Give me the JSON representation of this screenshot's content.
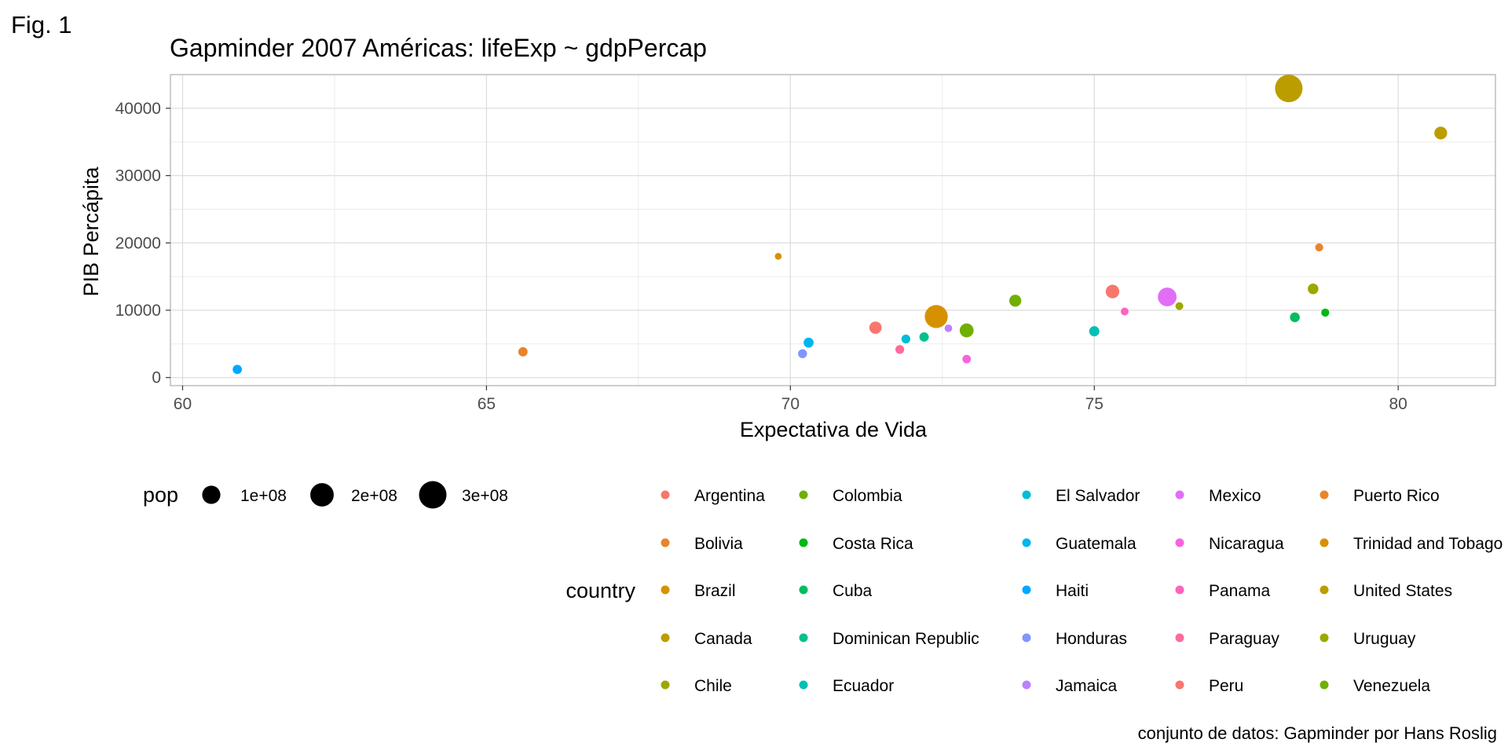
{
  "fig_label": "Fig. 1",
  "caption": "conjunto de datos: Gapminder por Hans Roslig",
  "chart_data": {
    "type": "scatter",
    "title": "Gapminder 2007 Américas: lifeExp ~  gdpPercap",
    "xlabel": "Expectativa de Vida",
    "ylabel": "PIB Percápita",
    "xlim": [
      59.8,
      81.6
    ],
    "ylim": [
      -1200,
      45000
    ],
    "x_ticks": [
      60,
      65,
      70,
      75,
      80
    ],
    "y_ticks": [
      0,
      10000,
      20000,
      30000,
      40000
    ],
    "grid": true,
    "size_legend": {
      "title": "pop",
      "entries": [
        {
          "label": "1e+08",
          "value": 100000000
        },
        {
          "label": "2e+08",
          "value": 200000000
        },
        {
          "label": "3e+08",
          "value": 300000000
        }
      ]
    },
    "color_legend_title": "country",
    "points": [
      {
        "country": "Argentina",
        "x": 75.3,
        "y": 12780,
        "pop": 40301927,
        "color": "#F8766D"
      },
      {
        "country": "Bolivia",
        "x": 65.6,
        "y": 3822,
        "pop": 9119152,
        "color": "#E9842C"
      },
      {
        "country": "Brazil",
        "x": 72.4,
        "y": 9066,
        "pop": 190010647,
        "color": "#D69100"
      },
      {
        "country": "Canada",
        "x": 80.7,
        "y": 36319,
        "pop": 33390141,
        "color": "#BC9D00"
      },
      {
        "country": "Chile",
        "x": 78.6,
        "y": 13172,
        "pop": 16284741,
        "color": "#9CA700"
      },
      {
        "country": "Colombia",
        "x": 72.9,
        "y": 7007,
        "pop": 44227550,
        "color": "#6FB000"
      },
      {
        "country": "Costa Rica",
        "x": 78.8,
        "y": 9645,
        "pop": 4133884,
        "color": "#00B813"
      },
      {
        "country": "Cuba",
        "x": 78.3,
        "y": 8948,
        "pop": 11416987,
        "color": "#00BD61"
      },
      {
        "country": "Dominican Republic",
        "x": 72.2,
        "y": 6025,
        "pop": 9319622,
        "color": "#00C08E"
      },
      {
        "country": "Ecuador",
        "x": 75.0,
        "y": 6873,
        "pop": 13755680,
        "color": "#00C0B4"
      },
      {
        "country": "El Salvador",
        "x": 71.9,
        "y": 5728,
        "pop": 6939688,
        "color": "#00BDD4"
      },
      {
        "country": "Guatemala",
        "x": 70.3,
        "y": 5186,
        "pop": 12572928,
        "color": "#00B5EE"
      },
      {
        "country": "Haiti",
        "x": 60.9,
        "y": 1202,
        "pop": 8502814,
        "color": "#00A7FF"
      },
      {
        "country": "Honduras",
        "x": 70.2,
        "y": 3548,
        "pop": 7483763,
        "color": "#7F96FF"
      },
      {
        "country": "Jamaica",
        "x": 72.6,
        "y": 7321,
        "pop": 2780132,
        "color": "#BC81FF"
      },
      {
        "country": "Mexico",
        "x": 76.2,
        "y": 11978,
        "pop": 108700891,
        "color": "#E26EF7"
      },
      {
        "country": "Nicaragua",
        "x": 72.9,
        "y": 2749,
        "pop": 5675356,
        "color": "#F863DF"
      },
      {
        "country": "Panama",
        "x": 75.5,
        "y": 9809,
        "pop": 3242173,
        "color": "#FF62BF"
      },
      {
        "country": "Paraguay",
        "x": 71.8,
        "y": 4173,
        "pop": 6667147,
        "color": "#FF6A9A"
      },
      {
        "country": "Peru",
        "x": 71.4,
        "y": 7409,
        "pop": 28674757,
        "color": "#F8766D"
      },
      {
        "country": "Puerto Rico",
        "x": 78.7,
        "y": 19329,
        "pop": 3942491,
        "color": "#E9842C"
      },
      {
        "country": "Trinidad and Tobago",
        "x": 69.8,
        "y": 18009,
        "pop": 1056608,
        "color": "#D69100"
      },
      {
        "country": "United States",
        "x": 78.2,
        "y": 42952,
        "pop": 301139947,
        "color": "#BC9D00"
      },
      {
        "country": "Uruguay",
        "x": 76.4,
        "y": 10611,
        "pop": 3447496,
        "color": "#9CA700"
      },
      {
        "country": "Venezuela",
        "x": 73.7,
        "y": 11416,
        "pop": 26084662,
        "color": "#6FB000"
      }
    ],
    "legend_columns": [
      [
        "Argentina",
        "Bolivia",
        "Brazil",
        "Canada",
        "Chile"
      ],
      [
        "Colombia",
        "Costa Rica",
        "Cuba",
        "Dominican Republic",
        "Ecuador"
      ],
      [
        "El Salvador",
        "Guatemala",
        "Haiti",
        "Honduras",
        "Jamaica"
      ],
      [
        "Mexico",
        "Nicaragua",
        "Panama",
        "Paraguay",
        "Peru"
      ],
      [
        "Puerto Rico",
        "Trinidad and Tobago",
        "United States",
        "Uruguay",
        "Venezuela"
      ]
    ]
  }
}
